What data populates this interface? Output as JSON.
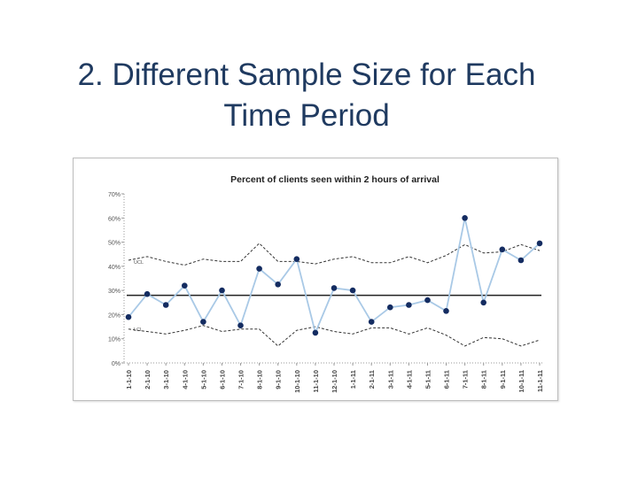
{
  "slide": {
    "title_line1": "2. Different Sample Size for Each",
    "title_line2": "Time Period"
  },
  "chart_data": {
    "type": "line",
    "title": "Percent of clients seen within 2 hours of arrival",
    "xlabel": "",
    "ylabel": "",
    "ylim": [
      0,
      70
    ],
    "yticks": [
      0,
      10,
      20,
      30,
      40,
      50,
      60,
      70
    ],
    "ytick_labels": [
      "0%",
      "10%",
      "20%",
      "30%",
      "40%",
      "50%",
      "60%",
      "70%"
    ],
    "categories": [
      "1-1-10",
      "2-1-10",
      "3-1-10",
      "4-1-10",
      "5-1-10",
      "6-1-10",
      "7-1-10",
      "8-1-10",
      "9-1-10",
      "10-1-10",
      "11-1-10",
      "12-1-10",
      "1-1-11",
      "2-1-11",
      "3-1-11",
      "4-1-11",
      "5-1-11",
      "6-1-11",
      "7-1-11",
      "8-1-11",
      "9-1-11",
      "10-1-11",
      "11-1-11"
    ],
    "series": [
      {
        "role": "data",
        "values": [
          19,
          28.5,
          24,
          32,
          17,
          30,
          15.5,
          39,
          32.5,
          43,
          12.5,
          31,
          30,
          17,
          23,
          24,
          26,
          21.5,
          60,
          25,
          47,
          42.5,
          49.5
        ],
        "color": "#a9c9e6",
        "marker_color": "#142c61"
      },
      {
        "name": "UCL",
        "role": "upper-limit",
        "values": [
          42.5,
          44,
          42,
          40.5,
          43,
          42,
          42,
          49.5,
          42,
          42,
          41,
          43,
          44,
          41.5,
          41.5,
          44,
          41.5,
          44.5,
          49,
          45.5,
          46,
          49,
          46.5
        ],
        "style": "dashed",
        "color": "#333333"
      },
      {
        "name": "LCL",
        "role": "lower-limit",
        "values": [
          14,
          13,
          12,
          13.5,
          15.5,
          13,
          14,
          14,
          7,
          13.5,
          15,
          13,
          12,
          14.5,
          14.5,
          12,
          14.5,
          11.5,
          7,
          10.5,
          10,
          7,
          9.5
        ],
        "style": "dashed",
        "color": "#333333"
      }
    ],
    "center_line": 28,
    "center_line_color": "#222222",
    "grid": false
  }
}
